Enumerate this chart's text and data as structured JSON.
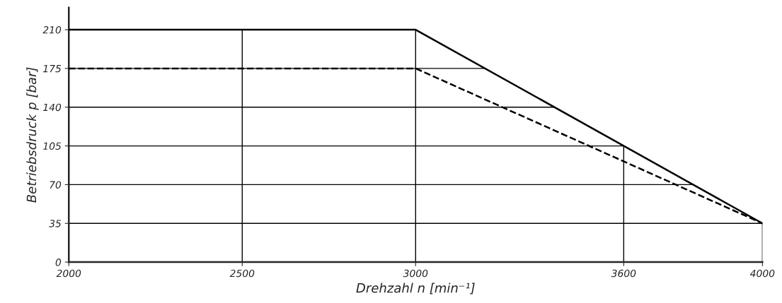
{
  "chart_data": {
    "type": "line",
    "xlabel": "Drehzahl n [min⁻¹]",
    "ylabel": "Betriebsdruck p [bar]",
    "x": [
      2000,
      3000,
      4000
    ],
    "series": [
      {
        "color": "#000000",
        "values": [
          210,
          210,
          35
        ],
        "line_style": "solid"
      },
      {
        "color": "#000000",
        "values": [
          175,
          175,
          35
        ],
        "line_style": "dashed"
      }
    ],
    "xlim": [
      2000,
      4000
    ],
    "ylim": [
      0,
      230
    ],
    "xticks": [
      2000,
      2500,
      3000,
      3600,
      4000
    ],
    "yticks": [
      0,
      35,
      70,
      105,
      140,
      175,
      210
    ],
    "grid": true,
    "marker": "none"
  }
}
